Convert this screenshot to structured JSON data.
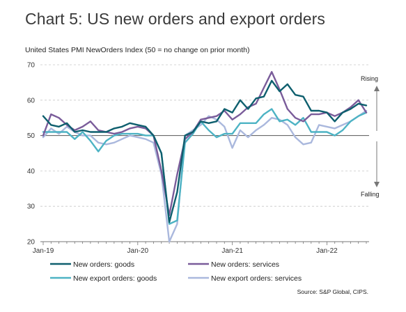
{
  "chart_data": {
    "type": "line",
    "title": "Chart 5: US new orders and export orders",
    "subtitle": "United States PMI NewOrders Index (50 = no change on prior month)",
    "source": "Source: S&P Global, CIPS.",
    "ylim": [
      20,
      70
    ],
    "yticks": [
      20,
      30,
      40,
      50,
      60,
      70
    ],
    "reference_line": 50,
    "x_tick_labels": [
      {
        "label": "Jan-19",
        "index": 0
      },
      {
        "label": "Jan-20",
        "index": 12
      },
      {
        "label": "Jan-21",
        "index": 24
      },
      {
        "label": "Jan-22",
        "index": 36
      }
    ],
    "annotations": {
      "rising": "Rising",
      "falling": "Falling"
    },
    "legend_position": "bottom",
    "series": [
      {
        "name": "New orders: goods",
        "color": "#0e5f6e",
        "values": [
          55.5,
          53,
          52.5,
          53.5,
          51,
          51.5,
          51,
          51,
          51,
          52,
          52.5,
          53.5,
          53,
          52.5,
          50,
          45,
          25.5,
          34,
          50,
          51,
          54,
          53.5,
          54,
          57.5,
          56.5,
          60,
          57.5,
          60.5,
          61,
          65.5,
          62.5,
          64.5,
          61.5,
          61,
          57,
          57,
          56.5,
          54,
          56.5,
          57.5,
          59,
          58.5
        ]
      },
      {
        "name": "New orders: services",
        "color": "#7a5c9a",
        "values": [
          50,
          56,
          55,
          53,
          51.5,
          52.5,
          54,
          51.5,
          51,
          50.5,
          51,
          52,
          52.5,
          52,
          50,
          40,
          27.5,
          39,
          49,
          51,
          54.5,
          55,
          55.5,
          57,
          54.5,
          56,
          58,
          59,
          63.5,
          68,
          63,
          57.5,
          55,
          54,
          56,
          56,
          56.5,
          55.5,
          56.5,
          58,
          60,
          56.5
        ]
      },
      {
        "name": "New export orders: goods",
        "color": "#4db3c4",
        "values": [
          51,
          51,
          51,
          51,
          49,
          51,
          48.5,
          45.5,
          48.5,
          50,
          50.5,
          50.5,
          50.5,
          50,
          50,
          45,
          25,
          26,
          48,
          50.5,
          54,
          51.5,
          49.5,
          50.5,
          50.5,
          53.5,
          53.5,
          53.5,
          56,
          57.5,
          54,
          54.5,
          53,
          55,
          51,
          51,
          51,
          50,
          51.5,
          54,
          55.5,
          56.5
        ]
      },
      {
        "name": "New export orders: services",
        "color": "#aab8dd",
        "values": [
          49.5,
          52,
          50.5,
          52.5,
          51,
          50,
          50,
          48,
          47.5,
          48,
          49,
          50,
          49.5,
          49,
          48,
          39,
          20,
          25,
          50,
          51.5,
          53,
          55.5,
          54.5,
          52.5,
          46.5,
          51.5,
          49.5,
          51.5,
          53,
          55,
          54.5,
          53,
          49.5,
          47.5,
          48,
          53,
          52.5,
          52,
          53,
          54,
          55.5,
          57
        ]
      }
    ]
  }
}
